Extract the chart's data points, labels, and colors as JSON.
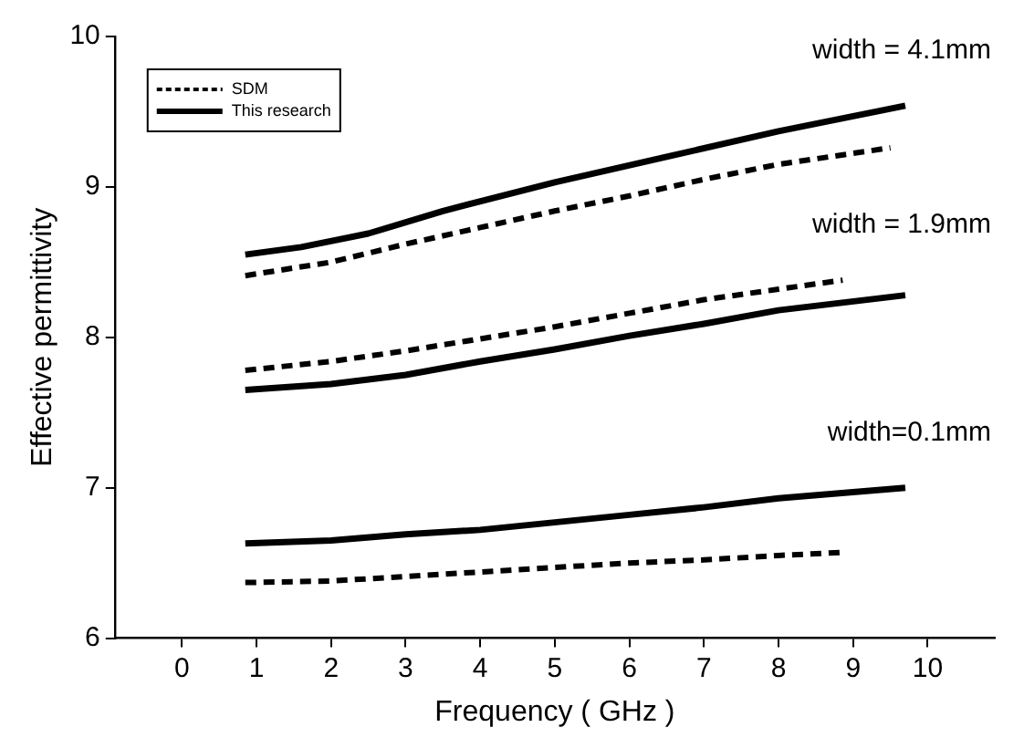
{
  "chart_data": {
    "type": "line",
    "xlabel": "Frequency ( GHz )",
    "ylabel": "Effective permittivity",
    "xlim": [
      -0.9,
      10.9
    ],
    "xticks": [
      0,
      1,
      2,
      3,
      4,
      5,
      6,
      7,
      8,
      9,
      10
    ],
    "ylim": [
      6,
      10
    ],
    "yticks": [
      6,
      7,
      8,
      9,
      10
    ],
    "grid": false,
    "legend": "top left",
    "marker": "none",
    "series": [
      {
        "name": "SDM",
        "color": "#000000",
        "line_style": "dashed",
        "x": [
          0.85,
          2,
          3,
          4,
          5,
          6,
          7,
          8,
          9.5
        ],
        "values": [
          8.41,
          8.5,
          8.62,
          8.73,
          8.84,
          8.94,
          9.05,
          9.15,
          9.26
        ]
      },
      {
        "name": "This research",
        "color": "#000000",
        "line_style": "solid",
        "x": [
          0.85,
          1.6,
          2.5,
          3.5,
          5,
          6.5,
          8,
          9.7
        ],
        "values": [
          8.55,
          8.6,
          8.69,
          8.84,
          9.03,
          9.2,
          9.37,
          9.54
        ]
      },
      {
        "color": "#000000",
        "line_style": "dashed",
        "x": [
          0.85,
          2,
          3,
          4,
          5,
          6,
          7,
          8,
          8.86
        ],
        "values": [
          7.78,
          7.84,
          7.91,
          7.99,
          8.07,
          8.16,
          8.25,
          8.32,
          8.38
        ]
      },
      {
        "color": "#000000",
        "line_style": "solid",
        "x": [
          0.85,
          2,
          3,
          4,
          5,
          6,
          7,
          8,
          9.7
        ],
        "values": [
          7.65,
          7.69,
          7.75,
          7.84,
          7.92,
          8.01,
          8.09,
          8.18,
          8.28
        ]
      },
      {
        "color": "#000000",
        "line_style": "dashed",
        "x": [
          0.85,
          2,
          3,
          4,
          5,
          6,
          7,
          8,
          8.86
        ],
        "values": [
          6.37,
          6.38,
          6.41,
          6.44,
          6.47,
          6.5,
          6.52,
          6.55,
          6.57
        ]
      },
      {
        "color": "#000000",
        "line_style": "solid",
        "x": [
          0.85,
          2,
          3,
          4,
          5,
          6,
          7,
          8,
          9.7
        ],
        "values": [
          6.63,
          6.65,
          6.69,
          6.72,
          6.77,
          6.82,
          6.87,
          6.93,
          7.0
        ]
      }
    ],
    "annotations": [
      "width = 4.1mm",
      "width = 1.9mm",
      "width=0.1mm"
    ]
  }
}
